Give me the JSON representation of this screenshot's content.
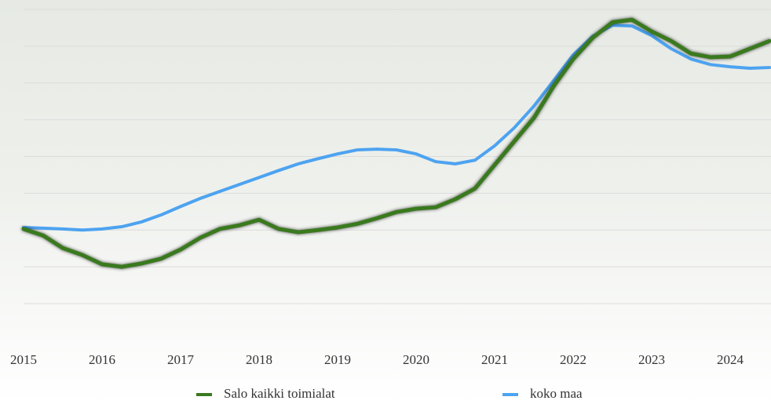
{
  "chart_data": {
    "type": "line",
    "x": [
      2015,
      2015.25,
      2015.5,
      2015.75,
      2016,
      2016.25,
      2016.5,
      2016.75,
      2017,
      2017.25,
      2017.5,
      2017.75,
      2018,
      2018.25,
      2018.5,
      2018.75,
      2019,
      2019.25,
      2019.5,
      2019.75,
      2020,
      2020.25,
      2020.5,
      2020.75,
      2021,
      2021.25,
      2021.5,
      2021.75,
      2022,
      2022.25,
      2022.5,
      2022.75,
      2023,
      2023.25,
      2023.5,
      2023.75,
      2024,
      2024.25,
      2024.5
    ],
    "series": [
      {
        "name": "Salo kaikki toimialat",
        "color": "#3a7a1e",
        "values": [
          2.03,
          1.85,
          1.51,
          1.32,
          1.07,
          1.0,
          1.09,
          1.22,
          1.47,
          1.79,
          2.03,
          2.13,
          2.28,
          2.03,
          1.94,
          2.0,
          2.07,
          2.17,
          2.32,
          2.49,
          2.58,
          2.62,
          2.84,
          3.13,
          3.77,
          4.41,
          5.05,
          5.91,
          6.65,
          7.23,
          7.65,
          7.72,
          7.4,
          7.14,
          6.8,
          6.7,
          6.72,
          6.93,
          7.14
        ]
      },
      {
        "name": "koko maa",
        "color": "#4da3f0",
        "values": [
          2.07,
          2.05,
          2.03,
          2.0,
          2.03,
          2.09,
          2.22,
          2.41,
          2.64,
          2.86,
          3.05,
          3.24,
          3.43,
          3.62,
          3.8,
          3.94,
          4.07,
          4.18,
          4.2,
          4.18,
          4.07,
          3.86,
          3.8,
          3.9,
          4.29,
          4.78,
          5.37,
          6.06,
          6.76,
          7.27,
          7.57,
          7.55,
          7.29,
          6.93,
          6.65,
          6.5,
          6.44,
          6.4,
          6.42
        ]
      }
    ],
    "xlim": [
      2015,
      2024.5
    ],
    "xticks": [
      2015,
      2016,
      2017,
      2018,
      2019,
      2020,
      2021,
      2022,
      2023,
      2024
    ],
    "ylim": [
      0,
      8
    ],
    "yticks": [
      0,
      1,
      2,
      3,
      4,
      5,
      6,
      7,
      8
    ],
    "grid": true,
    "legend": "bottom"
  }
}
